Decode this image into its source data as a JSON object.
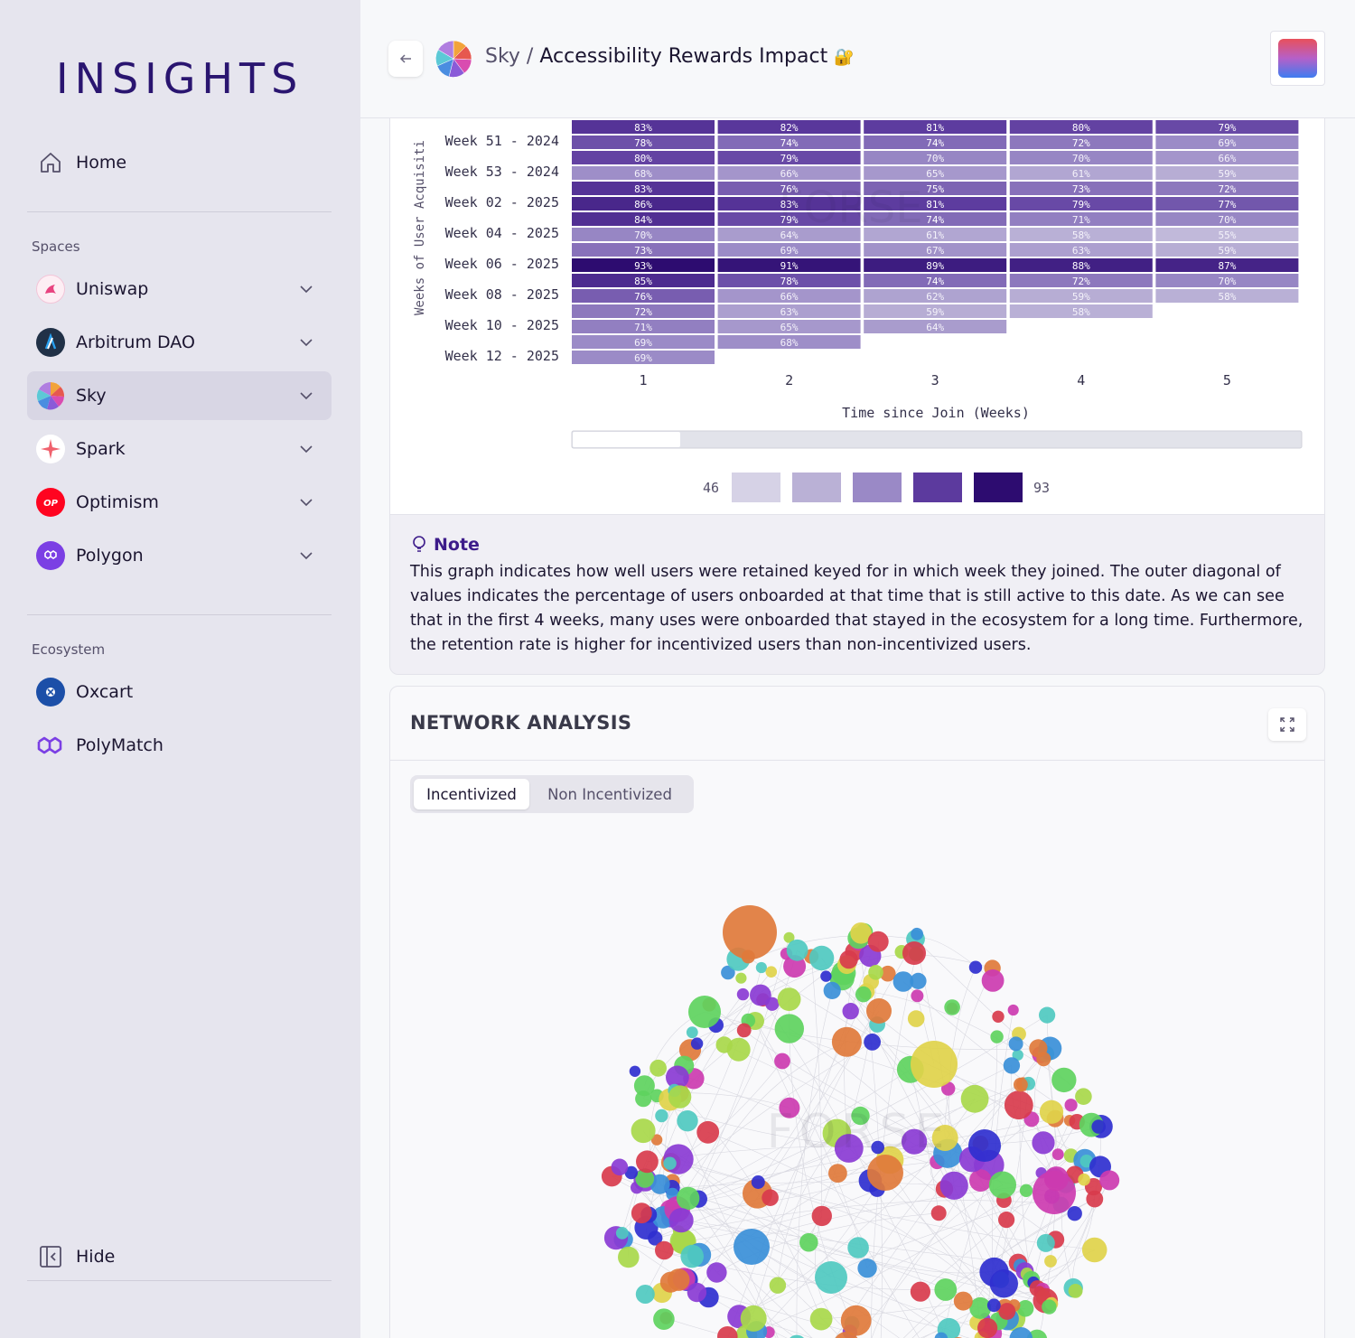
{
  "app": {
    "logo": "INSIGHTS"
  },
  "sidebar": {
    "home_label": "Home",
    "spaces_label": "Spaces",
    "spaces": [
      {
        "label": "Uniswap"
      },
      {
        "label": "Arbitrum DAO"
      },
      {
        "label": "Sky",
        "active": true
      },
      {
        "label": "Spark"
      },
      {
        "label": "Optimism"
      },
      {
        "label": "Polygon"
      }
    ],
    "ecosystem_label": "Ecosystem",
    "ecosystem": [
      {
        "label": "Oxcart"
      },
      {
        "label": "PolyMatch"
      }
    ],
    "hide_label": "Hide"
  },
  "header": {
    "space": "Sky /",
    "title": "Accessibility Rewards Impact",
    "title_emoji": "🔐"
  },
  "chart_data": {
    "type": "heatmap",
    "ylabel": "Weeks of User Acquisiti",
    "xlabel": "Time since Join (Weeks)",
    "x_categories": [
      "1",
      "2",
      "3",
      "4",
      "5"
    ],
    "y_tick_labels": [
      "Week 51 - 2024",
      "Week 53 - 2024",
      "Week 02 - 2025",
      "Week 04 - 2025",
      "Week 06 - 2025",
      "Week 08 - 2025",
      "Week 10 - 2025",
      "Week 12 - 2025"
    ],
    "rows": [
      [
        83,
        82,
        81,
        80,
        79
      ],
      [
        78,
        74,
        74,
        72,
        69
      ],
      [
        80,
        79,
        70,
        70,
        66
      ],
      [
        68,
        66,
        65,
        61,
        59
      ],
      [
        83,
        76,
        75,
        73,
        72
      ],
      [
        86,
        83,
        81,
        79,
        77
      ],
      [
        84,
        79,
        74,
        71,
        70
      ],
      [
        70,
        64,
        61,
        58,
        55
      ],
      [
        73,
        69,
        67,
        63,
        59
      ],
      [
        93,
        91,
        89,
        88,
        87
      ],
      [
        85,
        78,
        74,
        72,
        70
      ],
      [
        76,
        66,
        62,
        59,
        58
      ],
      [
        72,
        63,
        59,
        58
      ],
      [
        71,
        65,
        64
      ],
      [
        69,
        68
      ],
      [
        69
      ]
    ],
    "legend_min": "46",
    "legend_max": "93",
    "legend_colors": [
      "#d6d2e6",
      "#bab1d6",
      "#9a89c6",
      "#5c3a9e",
      "#2d0c70"
    ],
    "value_suffix": "%"
  },
  "note": {
    "title": "Note",
    "text": "This graph indicates how well users were retained keyed for in which week they joined. The outer diagonal of values indicates the percentage of users onboarded at that time that is still active to this date. As we can see that in the first 4 weeks, many uses were onboarded that stayed in the ecosystem for a long time. Furthermore, the retention rate is higher for incentivized users than non-incentivized users."
  },
  "network": {
    "title": "NETWORK ANALYSIS",
    "tabs": [
      "Incentivized",
      "Non Incentivized"
    ],
    "active_tab": "Incentivized",
    "watermark": "FORSE",
    "node_colors": [
      "#d83b4c",
      "#5ed35e",
      "#8a3bd4",
      "#2f2fcf",
      "#cc3bb0",
      "#e0d24a",
      "#4fc9c0",
      "#e07a3b",
      "#3a8fd8",
      "#a8d84a"
    ]
  }
}
